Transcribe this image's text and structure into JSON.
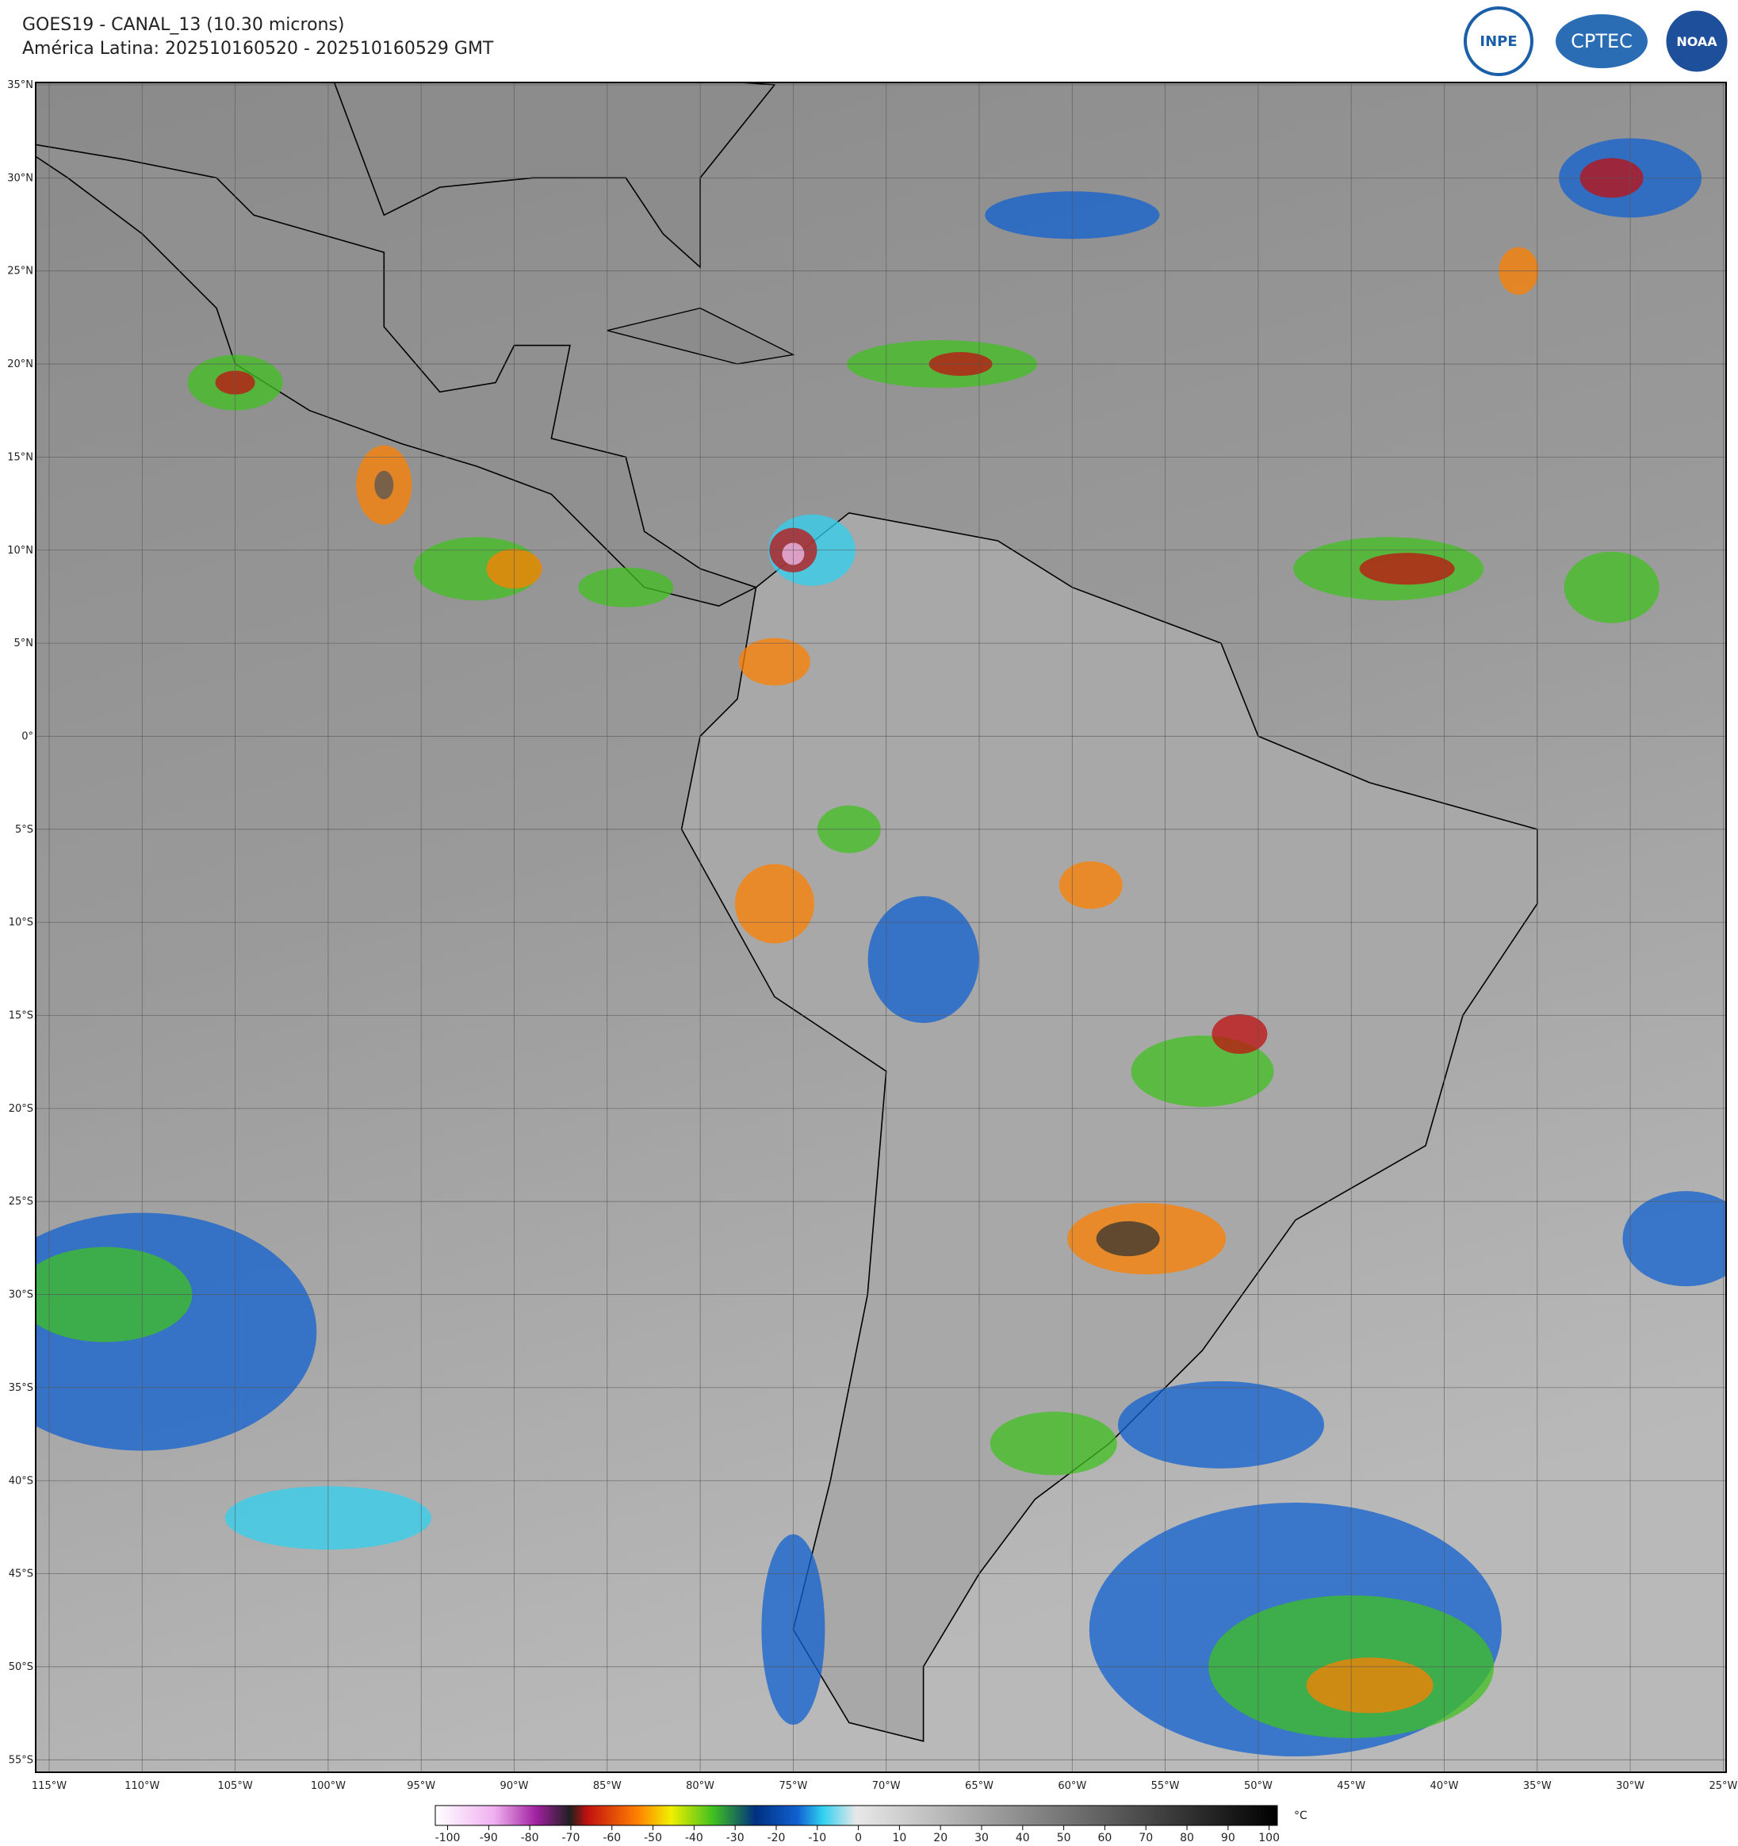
{
  "header": {
    "title": "GOES19 - CANAL_13 (10.30 microns)",
    "subtitle": "América Latina: 202510160520 - 202510160529 GMT"
  },
  "logos": [
    "INPE",
    "CPTEC",
    "NOAA"
  ],
  "map": {
    "lat_labels": [
      "35°N",
      "30°N",
      "25°N",
      "20°N",
      "15°N",
      "10°N",
      "5°N",
      "0°",
      "5°S",
      "10°S",
      "15°S",
      "20°S",
      "25°S",
      "30°S",
      "35°S",
      "40°S",
      "45°S",
      "50°S",
      "55°S"
    ],
    "lon_labels": [
      "115°W",
      "110°W",
      "105°W",
      "100°W",
      "95°W",
      "90°W",
      "85°W",
      "80°W",
      "75°W",
      "70°W",
      "65°W",
      "60°W",
      "55°W",
      "50°W",
      "45°W",
      "40°W",
      "35°W",
      "30°W",
      "25°W"
    ]
  },
  "colorbar": {
    "range": [
      -103,
      102
    ],
    "ticks": [
      -100,
      -90,
      -80,
      -70,
      -60,
      -50,
      -40,
      -30,
      -20,
      -10,
      0,
      10,
      20,
      30,
      40,
      50,
      60,
      70,
      80,
      90,
      100
    ],
    "unit": "°C"
  }
}
